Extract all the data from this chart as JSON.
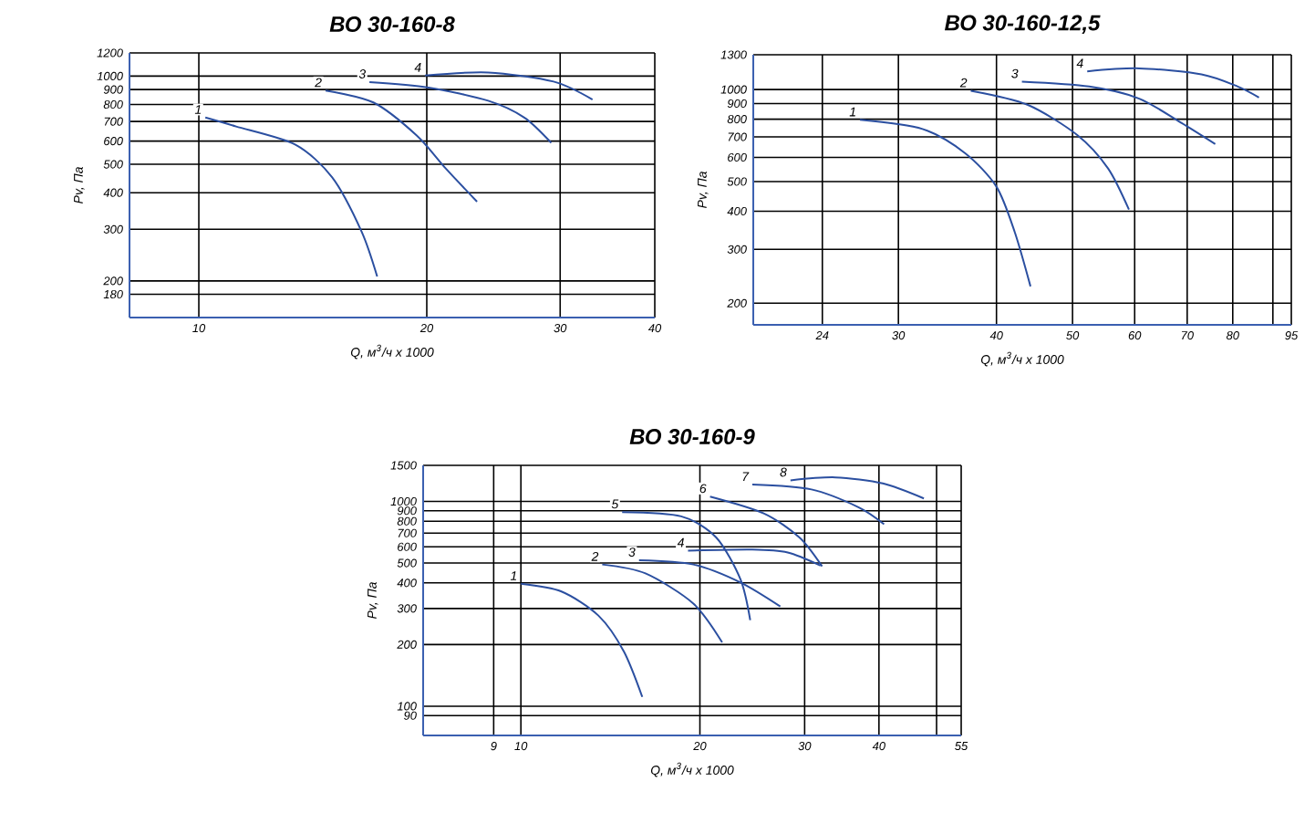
{
  "chart_data": [
    {
      "type": "line",
      "title": "ВО 30-160-8",
      "xlabel": "Q, м$^{3}$/ч x 1000",
      "ylabel": "Pv, Па",
      "log": "xy",
      "grid": true,
      "xlim": [
        8.1,
        40
      ],
      "ylim": [
        150,
        1200
      ],
      "xticks": [
        10,
        20,
        30,
        40
      ],
      "yticks": [
        180,
        200,
        300,
        400,
        500,
        600,
        700,
        800,
        900,
        1000,
        1200
      ],
      "series": [
        {
          "name": "1",
          "color": "#2b4fa0",
          "x": [
            10.2,
            11.2,
            13.4,
            15.0,
            16.4,
            17.2
          ],
          "values": [
            722,
            673,
            584,
            451,
            295,
            207
          ]
        },
        {
          "name": "2",
          "color": "#2b4fa0",
          "x": [
            14.7,
            17.0,
            19.4,
            21.2,
            23.3
          ],
          "values": [
            893,
            813,
            627,
            483,
            373
          ]
        },
        {
          "name": "3",
          "color": "#2b4fa0",
          "x": [
            16.8,
            20.1,
            24.1,
            26.9,
            29.2
          ],
          "values": [
            954,
            914,
            824,
            722,
            592
          ]
        },
        {
          "name": "4",
          "color": "#2b4fa0",
          "x": [
            19.9,
            24.1,
            29.4,
            33.1
          ],
          "values": [
            1005,
            1029,
            958,
            832
          ]
        }
      ]
    },
    {
      "type": "line",
      "title": "ВО 30-160-12,5",
      "xlabel": "Q, м$^{3}$/ч x 1000",
      "ylabel": "Pv, Па",
      "log": "xy",
      "grid": true,
      "xlim": [
        19.6,
        95
      ],
      "ylim": [
        170,
        1300
      ],
      "xticks": [
        24,
        30,
        40,
        50,
        60,
        70,
        80,
        {
          "value": 90,
          "label": null
        },
        95
      ],
      "yticks": [
        200,
        300,
        400,
        500,
        600,
        700,
        800,
        900,
        1000,
        1300
      ],
      "series": [
        {
          "name": "1",
          "color": "#2b4fa0",
          "x": [
            26.8,
            32.2,
            36.5,
            40.0,
            42.2,
            44.2
          ],
          "values": [
            796,
            743,
            619,
            481,
            342,
            227
          ]
        },
        {
          "name": "2",
          "color": "#2b4fa0",
          "x": [
            37.1,
            43.8,
            50.7,
            55.5,
            59.0
          ],
          "values": [
            991,
            892,
            710,
            552,
            405
          ]
        },
        {
          "name": "3",
          "color": "#2b4fa0",
          "x": [
            43.1,
            52.5,
            60.8,
            68.8,
            76.0
          ],
          "values": [
            1061,
            1023,
            934,
            778,
            663
          ]
        },
        {
          "name": "4",
          "color": "#2b4fa0",
          "x": [
            52.2,
            60.8,
            73.0,
            81.2,
            86.4
          ],
          "values": [
            1147,
            1173,
            1121,
            1023,
            942
          ]
        }
      ]
    },
    {
      "type": "line",
      "title": "ВО 30-160-9",
      "xlabel": "Q, м$^{3}$/ч x 1000",
      "ylabel": "Pv, Па",
      "log": "xy",
      "grid": true,
      "xlim": [
        6.85,
        55
      ],
      "ylim": [
        72,
        1500
      ],
      "xticks": [
        9,
        10,
        20,
        30,
        40,
        {
          "value": 50,
          "label": null
        },
        55
      ],
      "yticks": [
        90,
        100,
        200,
        300,
        400,
        500,
        600,
        700,
        800,
        900,
        1000,
        1500
      ],
      "series": [
        {
          "name": "1",
          "color": "#2b4fa0",
          "x": [
            10.0,
            11.7,
            13.5,
            14.9,
            16.0
          ],
          "values": [
            396,
            363,
            277,
            185,
            111
          ]
        },
        {
          "name": "2",
          "color": "#2b4fa0",
          "x": [
            13.7,
            16.2,
            19.5,
            21.8
          ],
          "values": [
            492,
            445,
            317,
            205
          ]
        },
        {
          "name": "3",
          "color": "#2b4fa0",
          "x": [
            15.8,
            19.5,
            23.4,
            27.3
          ],
          "values": [
            516,
            492,
            402,
            307
          ]
        },
        {
          "name": "4",
          "color": "#2b4fa0",
          "x": [
            19.1,
            24.5,
            28.1,
            31.9
          ],
          "values": [
            575,
            582,
            563,
            486
          ]
        },
        {
          "name": "5",
          "color": "#2b4fa0",
          "x": [
            14.8,
            18.6,
            21.3,
            23.4,
            24.3
          ],
          "values": [
            886,
            845,
            667,
            416,
            263
          ]
        },
        {
          "name": "6",
          "color": "#2b4fa0",
          "x": [
            20.8,
            25.6,
            29.4,
            32.1
          ],
          "values": [
            1055,
            874,
            667,
            482
          ]
        },
        {
          "name": "7",
          "color": "#2b4fa0",
          "x": [
            24.5,
            30.8,
            37.0,
            40.8
          ],
          "values": [
            1208,
            1144,
            935,
            774
          ]
        },
        {
          "name": "8",
          "color": "#2b4fa0",
          "x": [
            28.4,
            33.8,
            40.6,
            47.6
          ],
          "values": [
            1267,
            1310,
            1224,
            1034
          ]
        }
      ]
    }
  ]
}
